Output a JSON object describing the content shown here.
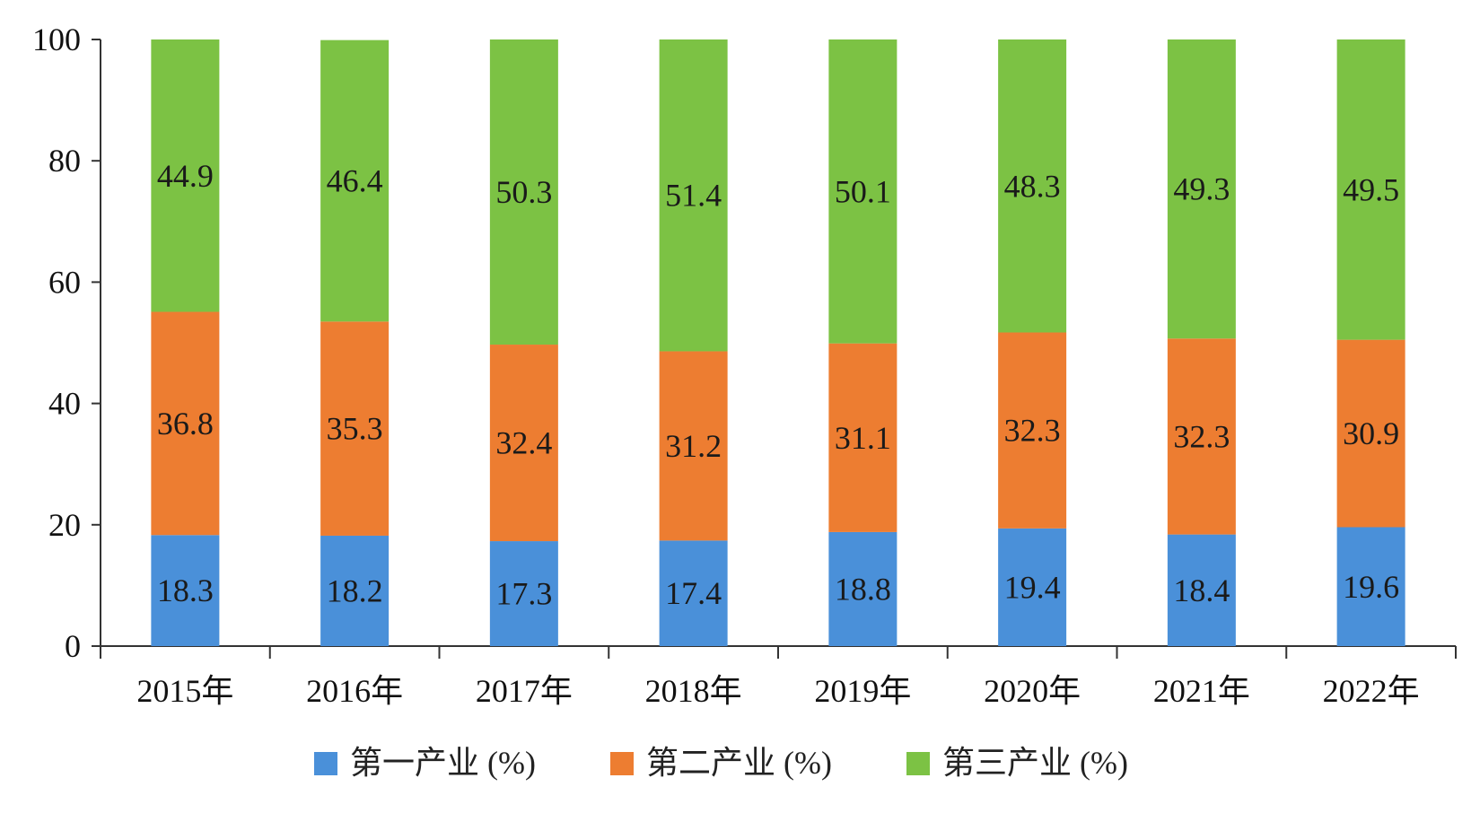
{
  "chart_data": {
    "type": "bar",
    "stacked": true,
    "categories": [
      "2015年",
      "2016年",
      "2017年",
      "2018年",
      "2019年",
      "2020年",
      "2021年",
      "2022年"
    ],
    "series": [
      {
        "name": "第一产业 (%)",
        "color": "#4a90d9",
        "values": [
          18.3,
          18.2,
          17.3,
          17.4,
          18.8,
          19.4,
          18.4,
          19.6
        ]
      },
      {
        "name": "第二产业 (%)",
        "color": "#ed7d31",
        "values": [
          36.8,
          35.3,
          32.4,
          31.2,
          31.1,
          32.3,
          32.3,
          30.9
        ]
      },
      {
        "name": "第三产业 (%)",
        "color": "#7cc244",
        "values": [
          44.9,
          46.4,
          50.3,
          51.4,
          50.1,
          48.3,
          49.3,
          49.5
        ]
      }
    ],
    "ylim": [
      0,
      100
    ],
    "yticks": [
      0,
      20,
      40,
      60,
      80,
      100
    ],
    "xlabel": "",
    "ylabel": "",
    "title": "",
    "grid": false,
    "legend_position": "bottom"
  }
}
